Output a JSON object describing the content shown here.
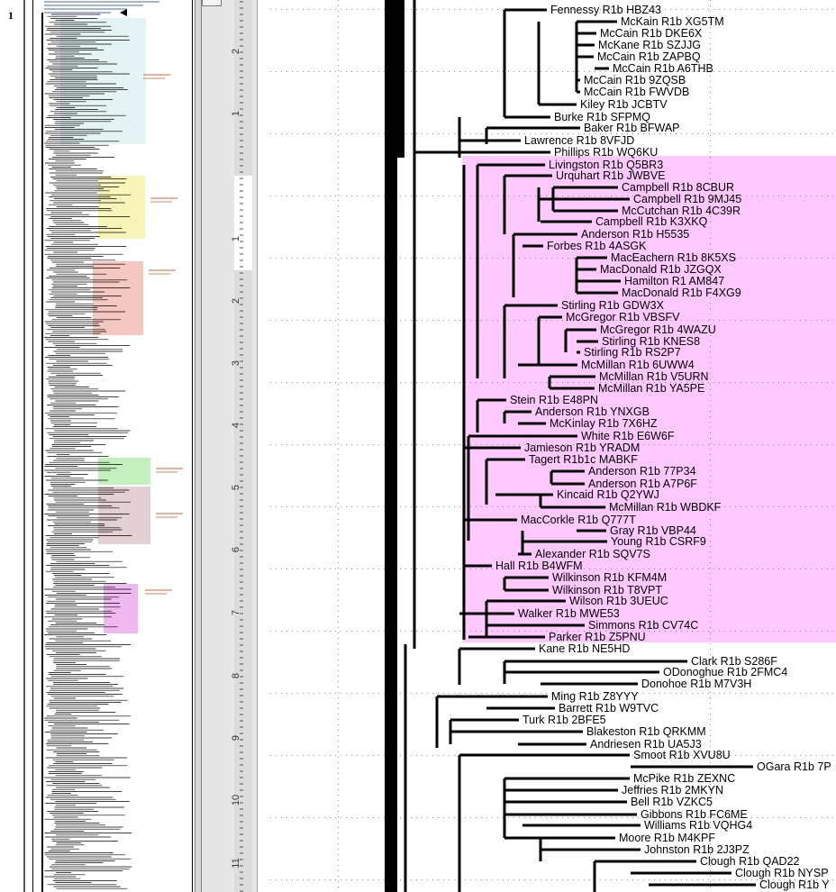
{
  "page_number": "1",
  "ruler": {
    "labels": [
      "2",
      "1",
      "1",
      "2",
      "3",
      "4",
      "5",
      "6",
      "7",
      "8",
      "9",
      "10",
      "11"
    ]
  },
  "thumbnail": {
    "colors": {
      "teal": "#e4f3f3",
      "yellow": "#f8f4b8",
      "red": "#f4c8c0",
      "green": "#c4f0c0",
      "mauve": "#e4d0d4",
      "pink": "#f0b8f0"
    }
  },
  "highlight_color": "#ffc8ff",
  "tree": {
    "leaves": [
      "Fennessy R1b HBZ43",
      "McKain R1b XG5TM",
      "McCain R1b DKE6X",
      "McKane R1b SZJJG",
      "McCain R1b ZAPBQ",
      "McCain R1b A6THB",
      "McCain R1b 9ZQSB",
      "McCain R1b FWVDB",
      "Kiley R1b JCBTV",
      "Burke R1b SFPMQ",
      "Baker R1b BFWAP",
      "Lawrence R1b 8VFJD",
      "Phillips R1b WQ6KU",
      "Livingston R1b Q5BR3",
      "Urquhart R1b JWBVE",
      "Campbell R1b 8CBUR",
      "Campbell R1b 9MJ45",
      "McCutchan R1b 4C39R",
      "Campbell R1b K3XKQ",
      "Anderson R1b H5535",
      "Forbes R1b 4ASGK",
      "MacEachern R1b 8K5XS",
      "MacDonald R1b JZGQX",
      "Hamilton R1 AM847",
      "MacDonald R1b F4XG9",
      "Stirling R1b GDW3X",
      "McGregor R1b VBSFV",
      "McGregor R1b 4WAZU",
      "Stirling R1b KNES8",
      "Stirling R1b RS2P7",
      "McMillan R1b 6UWW4",
      "McMillan R1b V5URN",
      "McMillan R1b YA5PE",
      "Stein R1b E48PN",
      "Anderson R1b YNXGB",
      "McKinlay R1b 7X6HZ",
      "White R1b E6W6F",
      "Jamieson R1b YRADM",
      "Tagert R1b1c MABKF",
      "Anderson R1b 77P34",
      "Anderson R1b A7P6F",
      "Kincaid R1b Q2YWJ",
      "McMillan R1b WBDKF",
      "MacCorkle R1b Q777T",
      "Gray R1b VBP44",
      "Young R1b CSRF9",
      "Alexander R1b SQV7S",
      "Hall R1b B4WFM",
      "Wilkinson R1b KFM4M",
      "Wilkinson R1b T8VPT",
      "Wilson R1b 3UEUC",
      "Walker R1b MWE53",
      "Simmons R1b CV74C",
      "Parker R1b Z5PNU",
      "Kane R1b NE5HD",
      "Clark R1b S286F",
      "ODonoghue R1b 2FMC4",
      "Donohoe R1b M7V3H",
      "Ming R1b Z8YYY",
      "Barrett R1b W9TVC",
      "Turk R1b 2BFE5",
      "Blakeston R1b QRKMM",
      "Andriesen R1b UA5J3",
      "Smoot R1b XVU8U",
      "OGara R1b 7P",
      "McPike R1b ZEXNC",
      "Jeffries R1b 2MKYN",
      "Bell R1b VZKC5",
      "Gibbons R1b FC6ME",
      "Williams R1b VQHG4",
      "Moore R1b M4KPF",
      "Johnston R1b 2J3PZ",
      "Clough R1b QAD22",
      "Clough R1b NYSP",
      "Clough R1b Y"
    ]
  }
}
